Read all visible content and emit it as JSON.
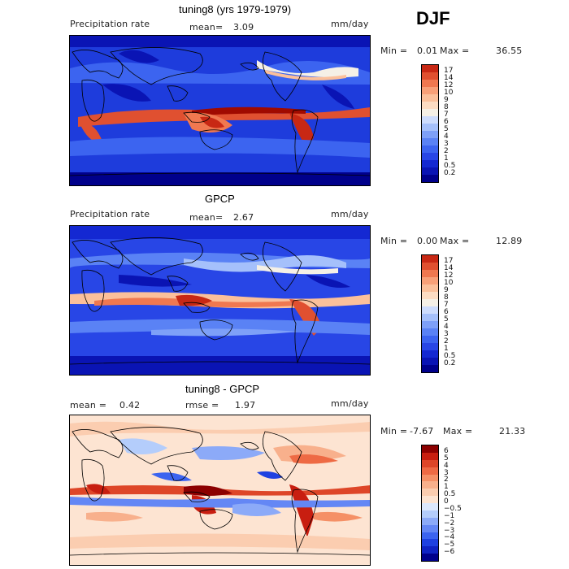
{
  "season": "DJF",
  "palettes": {
    "precip": [
      "#00008b",
      "#0a14b4",
      "#1428d2",
      "#2846e6",
      "#3c64f0",
      "#5a82f5",
      "#7ea0f8",
      "#a5c0fb",
      "#cddcfd",
      "#f5f0e6",
      "#fcdcc3",
      "#fbc09b",
      "#f8a078",
      "#f07850",
      "#e05030",
      "#c82814",
      "#a00a00",
      "#7a0000"
    ],
    "diff": [
      "#00008b",
      "#0f23c3",
      "#1e41e1",
      "#3c64f0",
      "#6487f5",
      "#8caaf8",
      "#b4cdfb",
      "#dce8fd",
      "#fde4d2",
      "#fbcdb0",
      "#f8b08c",
      "#f59066",
      "#ee6a44",
      "#de4628",
      "#c81e10",
      "#8c0000"
    ]
  },
  "panels": [
    {
      "title": "tuning8 (yrs 1979-1979)",
      "left_label": "Precipitation rate",
      "mean_label": "mean=",
      "mean_value": "3.09",
      "units": "mm/day",
      "min_label": "Min =",
      "min_value": "0.01",
      "max_label": "Max =",
      "max_value": "36.55",
      "palette": "precip",
      "levels": [
        "0.2",
        "0.5",
        "1",
        "2",
        "3",
        "4",
        "5",
        "6",
        "7",
        "8",
        "9",
        "10",
        "12",
        "14",
        "17"
      ]
    },
    {
      "title": "GPCP",
      "left_label": "Precipitation rate",
      "mean_label": "mean=",
      "mean_value": "2.67",
      "units": "mm/day",
      "min_label": "Min =",
      "min_value": "0.00",
      "max_label": "Max =",
      "max_value": "12.89",
      "palette": "precip",
      "levels": [
        "0.2",
        "0.5",
        "1",
        "2",
        "3",
        "4",
        "5",
        "6",
        "7",
        "8",
        "9",
        "10",
        "12",
        "14",
        "17"
      ]
    },
    {
      "title": "tuning8 - GPCP",
      "left_label": "mean =",
      "left_value": "0.42",
      "rmse_label": "rmse =",
      "rmse_value": "1.97",
      "units": "mm/day",
      "min_label": "Min =",
      "min_value": "-7.67",
      "max_label": "Max =",
      "max_value": "21.33",
      "palette": "diff",
      "levels": [
        "−6",
        "−5",
        "−4",
        "−3",
        "−2",
        "−1",
        "−0.5",
        "0",
        "0.5",
        "1",
        "2",
        "3",
        "4",
        "5",
        "6"
      ]
    }
  ]
}
